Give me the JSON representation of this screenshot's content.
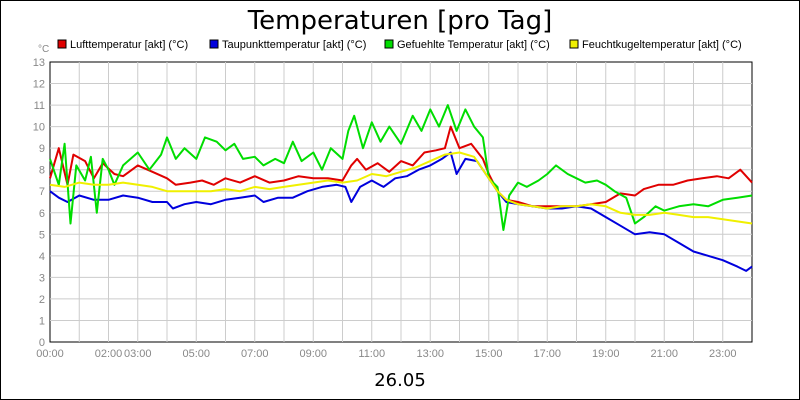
{
  "chart_data": {
    "type": "line",
    "title": "Temperaturen [pro Tag]",
    "ylabel": "°C",
    "xlabel": "26.05",
    "ylim": [
      0,
      13
    ],
    "xlim": [
      0,
      24
    ],
    "grid": true,
    "legend_placement": "top",
    "yticks": [
      "0",
      "1",
      "2",
      "3",
      "4",
      "5",
      "6",
      "7",
      "8",
      "9",
      "10",
      "11",
      "12",
      "13"
    ],
    "xticks": [
      {
        "x": 0,
        "label": "00:00"
      },
      {
        "x": 2,
        "label": "02:00"
      },
      {
        "x": 3,
        "label": "03:00"
      },
      {
        "x": 5,
        "label": "05:00"
      },
      {
        "x": 7,
        "label": "07:00"
      },
      {
        "x": 9,
        "label": "09:00"
      },
      {
        "x": 11,
        "label": "11:00"
      },
      {
        "x": 13,
        "label": "13:00"
      },
      {
        "x": 15,
        "label": "15:00"
      },
      {
        "x": 17,
        "label": "17:00"
      },
      {
        "x": 19,
        "label": "19:00"
      },
      {
        "x": 21,
        "label": "21:00"
      },
      {
        "x": 23,
        "label": "23:00"
      }
    ],
    "series": [
      {
        "name": "Lufttemperatur [akt] (°C)",
        "color": "#e00000",
        "points": [
          [
            0,
            7.6
          ],
          [
            0.3,
            9.0
          ],
          [
            0.6,
            7.3
          ],
          [
            0.8,
            8.7
          ],
          [
            1.2,
            8.4
          ],
          [
            1.5,
            7.6
          ],
          [
            1.8,
            8.3
          ],
          [
            2.2,
            7.8
          ],
          [
            2.5,
            7.7
          ],
          [
            3.0,
            8.2
          ],
          [
            3.5,
            7.9
          ],
          [
            4.0,
            7.6
          ],
          [
            4.3,
            7.3
          ],
          [
            4.8,
            7.4
          ],
          [
            5.2,
            7.5
          ],
          [
            5.6,
            7.3
          ],
          [
            6.0,
            7.6
          ],
          [
            6.5,
            7.4
          ],
          [
            7.0,
            7.7
          ],
          [
            7.5,
            7.4
          ],
          [
            8.0,
            7.5
          ],
          [
            8.5,
            7.7
          ],
          [
            9.0,
            7.6
          ],
          [
            9.5,
            7.6
          ],
          [
            10.0,
            7.5
          ],
          [
            10.3,
            8.2
          ],
          [
            10.5,
            8.5
          ],
          [
            10.8,
            8.0
          ],
          [
            11.2,
            8.3
          ],
          [
            11.6,
            7.9
          ],
          [
            12.0,
            8.4
          ],
          [
            12.4,
            8.2
          ],
          [
            12.8,
            8.8
          ],
          [
            13.2,
            8.9
          ],
          [
            13.5,
            9.0
          ],
          [
            13.7,
            10.0
          ],
          [
            14.0,
            9.0
          ],
          [
            14.4,
            9.2
          ],
          [
            14.8,
            8.5
          ],
          [
            15.0,
            7.8
          ],
          [
            15.3,
            7.0
          ],
          [
            15.6,
            6.6
          ],
          [
            16.0,
            6.5
          ],
          [
            16.5,
            6.3
          ],
          [
            17.0,
            6.3
          ],
          [
            17.5,
            6.3
          ],
          [
            18.0,
            6.3
          ],
          [
            18.5,
            6.4
          ],
          [
            19.0,
            6.5
          ],
          [
            19.5,
            6.9
          ],
          [
            20.0,
            6.8
          ],
          [
            20.3,
            7.1
          ],
          [
            20.8,
            7.3
          ],
          [
            21.3,
            7.3
          ],
          [
            21.8,
            7.5
          ],
          [
            22.3,
            7.6
          ],
          [
            22.8,
            7.7
          ],
          [
            23.2,
            7.6
          ],
          [
            23.6,
            8.0
          ],
          [
            24.0,
            7.4
          ]
        ]
      },
      {
        "name": "Taupunkttemperatur [akt] (°C)",
        "color": "#0000dd",
        "points": [
          [
            0,
            7.0
          ],
          [
            0.3,
            6.7
          ],
          [
            0.6,
            6.5
          ],
          [
            1.0,
            6.8
          ],
          [
            1.5,
            6.6
          ],
          [
            2.0,
            6.6
          ],
          [
            2.5,
            6.8
          ],
          [
            3.0,
            6.7
          ],
          [
            3.5,
            6.5
          ],
          [
            4.0,
            6.5
          ],
          [
            4.2,
            6.2
          ],
          [
            4.6,
            6.4
          ],
          [
            5.0,
            6.5
          ],
          [
            5.5,
            6.4
          ],
          [
            6.0,
            6.6
          ],
          [
            6.5,
            6.7
          ],
          [
            7.0,
            6.8
          ],
          [
            7.3,
            6.5
          ],
          [
            7.8,
            6.7
          ],
          [
            8.3,
            6.7
          ],
          [
            8.8,
            7.0
          ],
          [
            9.3,
            7.2
          ],
          [
            9.8,
            7.3
          ],
          [
            10.1,
            7.2
          ],
          [
            10.3,
            6.5
          ],
          [
            10.6,
            7.2
          ],
          [
            11.0,
            7.5
          ],
          [
            11.4,
            7.2
          ],
          [
            11.8,
            7.6
          ],
          [
            12.2,
            7.7
          ],
          [
            12.6,
            8.0
          ],
          [
            13.0,
            8.2
          ],
          [
            13.4,
            8.5
          ],
          [
            13.7,
            8.8
          ],
          [
            13.9,
            7.8
          ],
          [
            14.2,
            8.5
          ],
          [
            14.6,
            8.4
          ],
          [
            15.0,
            7.6
          ],
          [
            15.3,
            7.0
          ],
          [
            15.6,
            6.5
          ],
          [
            16.0,
            6.4
          ],
          [
            16.5,
            6.3
          ],
          [
            17.0,
            6.2
          ],
          [
            17.5,
            6.2
          ],
          [
            18.0,
            6.3
          ],
          [
            18.5,
            6.2
          ],
          [
            19.0,
            5.8
          ],
          [
            19.5,
            5.4
          ],
          [
            20.0,
            5.0
          ],
          [
            20.5,
            5.1
          ],
          [
            21.0,
            5.0
          ],
          [
            21.5,
            4.6
          ],
          [
            22.0,
            4.2
          ],
          [
            22.5,
            4.0
          ],
          [
            23.0,
            3.8
          ],
          [
            23.5,
            3.5
          ],
          [
            23.8,
            3.3
          ],
          [
            24.0,
            3.5
          ]
        ]
      },
      {
        "name": "Gefuehlte Temperatur [akt] (°C)",
        "color": "#00dd00",
        "points": [
          [
            0,
            8.5
          ],
          [
            0.3,
            7.3
          ],
          [
            0.5,
            9.2
          ],
          [
            0.7,
            5.5
          ],
          [
            0.9,
            8.2
          ],
          [
            1.2,
            7.5
          ],
          [
            1.4,
            8.6
          ],
          [
            1.6,
            6.0
          ],
          [
            1.8,
            8.5
          ],
          [
            2.0,
            8.0
          ],
          [
            2.2,
            7.3
          ],
          [
            2.5,
            8.2
          ],
          [
            3.0,
            8.8
          ],
          [
            3.4,
            8.0
          ],
          [
            3.8,
            8.7
          ],
          [
            4.0,
            9.5
          ],
          [
            4.3,
            8.5
          ],
          [
            4.6,
            9.0
          ],
          [
            5.0,
            8.5
          ],
          [
            5.3,
            9.5
          ],
          [
            5.7,
            9.3
          ],
          [
            6.0,
            8.9
          ],
          [
            6.3,
            9.2
          ],
          [
            6.6,
            8.5
          ],
          [
            7.0,
            8.6
          ],
          [
            7.3,
            8.2
          ],
          [
            7.7,
            8.5
          ],
          [
            8.0,
            8.3
          ],
          [
            8.3,
            9.3
          ],
          [
            8.6,
            8.4
          ],
          [
            9.0,
            8.8
          ],
          [
            9.3,
            8.0
          ],
          [
            9.6,
            9.0
          ],
          [
            10.0,
            8.5
          ],
          [
            10.2,
            9.8
          ],
          [
            10.4,
            10.5
          ],
          [
            10.7,
            9.0
          ],
          [
            11.0,
            10.2
          ],
          [
            11.3,
            9.3
          ],
          [
            11.6,
            10.0
          ],
          [
            12.0,
            9.2
          ],
          [
            12.4,
            10.5
          ],
          [
            12.7,
            9.8
          ],
          [
            13.0,
            10.8
          ],
          [
            13.3,
            10.0
          ],
          [
            13.6,
            11.0
          ],
          [
            13.9,
            9.8
          ],
          [
            14.2,
            10.8
          ],
          [
            14.5,
            10.0
          ],
          [
            14.8,
            9.5
          ],
          [
            15.0,
            7.6
          ],
          [
            15.3,
            7.2
          ],
          [
            15.5,
            5.2
          ],
          [
            15.7,
            6.8
          ],
          [
            16.0,
            7.4
          ],
          [
            16.3,
            7.2
          ],
          [
            16.7,
            7.5
          ],
          [
            17.0,
            7.8
          ],
          [
            17.3,
            8.2
          ],
          [
            17.7,
            7.8
          ],
          [
            18.0,
            7.6
          ],
          [
            18.3,
            7.4
          ],
          [
            18.7,
            7.5
          ],
          [
            19.0,
            7.3
          ],
          [
            19.3,
            7.0
          ],
          [
            19.7,
            6.7
          ],
          [
            20.0,
            5.5
          ],
          [
            20.3,
            5.8
          ],
          [
            20.7,
            6.3
          ],
          [
            21.0,
            6.1
          ],
          [
            21.5,
            6.3
          ],
          [
            22.0,
            6.4
          ],
          [
            22.5,
            6.3
          ],
          [
            23.0,
            6.6
          ],
          [
            23.5,
            6.7
          ],
          [
            24.0,
            6.8
          ]
        ]
      },
      {
        "name": "Feuchtkugeltemperatur [akt] (°C)",
        "color": "#f0f000",
        "points": [
          [
            0,
            7.3
          ],
          [
            0.5,
            7.2
          ],
          [
            1.0,
            7.4
          ],
          [
            1.5,
            7.3
          ],
          [
            2.0,
            7.3
          ],
          [
            2.5,
            7.4
          ],
          [
            3.0,
            7.3
          ],
          [
            3.5,
            7.2
          ],
          [
            4.0,
            7.0
          ],
          [
            4.5,
            7.0
          ],
          [
            5.0,
            7.0
          ],
          [
            5.5,
            7.0
          ],
          [
            6.0,
            7.1
          ],
          [
            6.5,
            7.0
          ],
          [
            7.0,
            7.2
          ],
          [
            7.5,
            7.1
          ],
          [
            8.0,
            7.2
          ],
          [
            8.5,
            7.3
          ],
          [
            9.0,
            7.4
          ],
          [
            9.5,
            7.5
          ],
          [
            10.0,
            7.4
          ],
          [
            10.5,
            7.5
          ],
          [
            11.0,
            7.8
          ],
          [
            11.5,
            7.7
          ],
          [
            12.0,
            7.9
          ],
          [
            12.5,
            8.1
          ],
          [
            13.0,
            8.4
          ],
          [
            13.5,
            8.7
          ],
          [
            14.0,
            8.8
          ],
          [
            14.5,
            8.6
          ],
          [
            15.0,
            7.6
          ],
          [
            15.3,
            7.0
          ],
          [
            15.6,
            6.6
          ],
          [
            16.0,
            6.4
          ],
          [
            16.5,
            6.3
          ],
          [
            17.0,
            6.2
          ],
          [
            17.5,
            6.3
          ],
          [
            18.0,
            6.3
          ],
          [
            18.5,
            6.4
          ],
          [
            19.0,
            6.3
          ],
          [
            19.5,
            6.0
          ],
          [
            20.0,
            5.9
          ],
          [
            20.5,
            5.9
          ],
          [
            21.0,
            6.0
          ],
          [
            21.5,
            5.9
          ],
          [
            22.0,
            5.8
          ],
          [
            22.5,
            5.8
          ],
          [
            23.0,
            5.7
          ],
          [
            23.5,
            5.6
          ],
          [
            24.0,
            5.5
          ]
        ]
      }
    ]
  }
}
